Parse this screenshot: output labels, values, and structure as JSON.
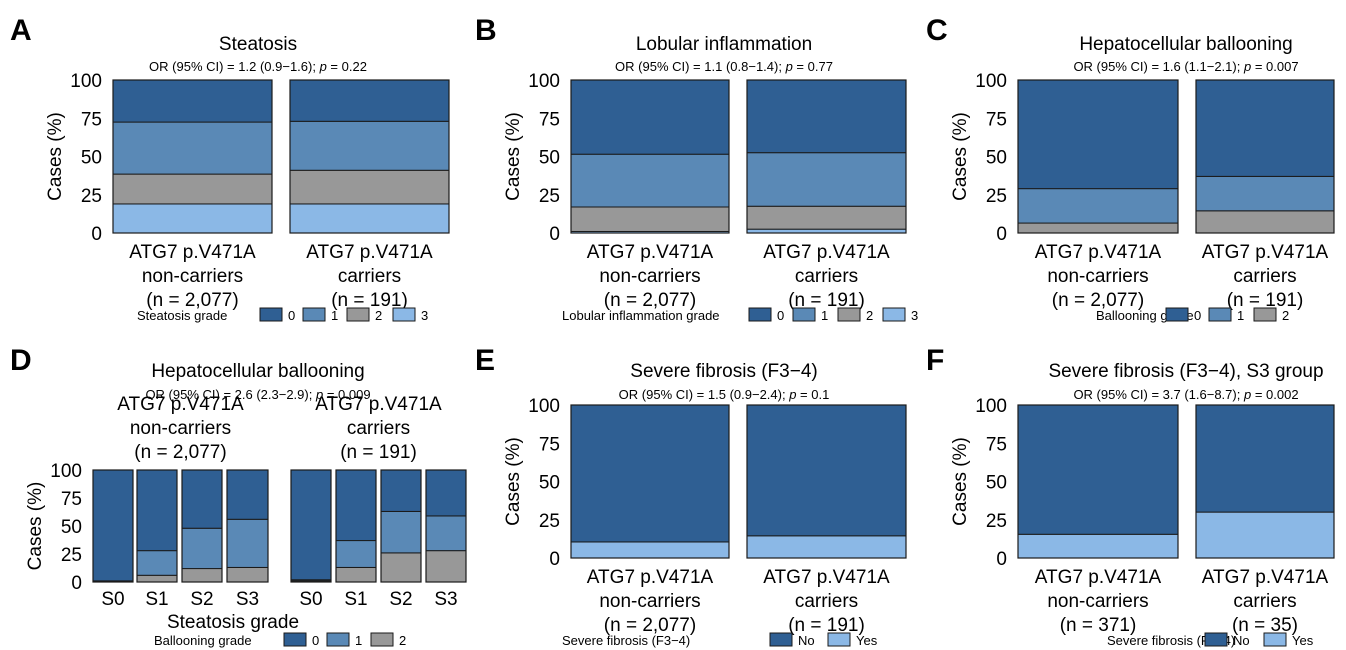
{
  "colors": {
    "0": "#2f5f93",
    "1": "#5a89b6",
    "2": "#989898",
    "3": "#8bb8e6",
    "No": "#2f5f93",
    "Yes": "#8bb8e6"
  },
  "chart_data": [
    {
      "panel": "A",
      "type": "bar",
      "stacked": true,
      "title": "Steatosis",
      "stat": {
        "prefix": "OR (95% CI) = 1.2 (0.9−1.6); ",
        "p_label": "p",
        "p_suffix": " = 0.22"
      },
      "ylabel": "Cases (%)",
      "ylim": [
        0,
        100
      ],
      "yticks": [
        "0",
        "25",
        "50",
        "75",
        "100"
      ],
      "categories": [
        [
          "ATG7 p.V471A",
          "non-carriers",
          "(n = 2,077)"
        ],
        [
          "ATG7 p.V471A",
          "carriers",
          "(n = 191)"
        ]
      ],
      "legend_title": "Steatosis grade",
      "series": [
        {
          "name": "0",
          "values": [
            27.5,
            27
          ]
        },
        {
          "name": "1",
          "values": [
            34,
            32
          ]
        },
        {
          "name": "2",
          "values": [
            19.5,
            22
          ]
        },
        {
          "name": "3",
          "values": [
            19,
            19
          ]
        }
      ]
    },
    {
      "panel": "B",
      "type": "bar",
      "stacked": true,
      "title": "Lobular inflammation",
      "stat": {
        "prefix": "OR (95% CI) = 1.1 (0.8−1.4); ",
        "p_label": "p",
        "p_suffix": " = 0.77"
      },
      "ylabel": "Cases (%)",
      "ylim": [
        0,
        100
      ],
      "yticks": [
        "0",
        "25",
        "50",
        "75",
        "100"
      ],
      "categories": [
        [
          "ATG7 p.V471A",
          "non-carriers",
          "(n = 2,077)"
        ],
        [
          "ATG7 p.V471A",
          "carriers",
          "(n = 191)"
        ]
      ],
      "legend_title": "Lobular inflammation grade",
      "series": [
        {
          "name": "0",
          "values": [
            48.5,
            47.5
          ]
        },
        {
          "name": "1",
          "values": [
            34.5,
            35
          ]
        },
        {
          "name": "2",
          "values": [
            16,
            15
          ]
        },
        {
          "name": "3",
          "values": [
            1,
            2.5
          ]
        }
      ]
    },
    {
      "panel": "C",
      "type": "bar",
      "stacked": true,
      "title": "Hepatocellular ballooning",
      "stat": {
        "prefix": "OR (95% CI) = 1.6 (1.1−2.1); ",
        "p_label": "p",
        "p_suffix": " = 0.007"
      },
      "ylabel": "Cases (%)",
      "ylim": [
        0,
        100
      ],
      "yticks": [
        "0",
        "25",
        "50",
        "75",
        "100"
      ],
      "categories": [
        [
          "ATG7 p.V471A",
          "non-carriers",
          "(n = 2,077)"
        ],
        [
          "ATG7 p.V471A",
          "carriers",
          "(n = 191)"
        ]
      ],
      "legend_title": "Ballooning grade",
      "series": [
        {
          "name": "0",
          "values": [
            71,
            63
          ]
        },
        {
          "name": "1",
          "values": [
            22.5,
            22.5
          ]
        },
        {
          "name": "2",
          "values": [
            6.5,
            14.5
          ]
        }
      ]
    },
    {
      "panel": "D",
      "type": "bar",
      "stacked": true,
      "title": "Hepatocellular ballooning",
      "stat": {
        "prefix": "OR (95% CI) = 2.6 (2.3−2.9); ",
        "p_label": "p",
        "p_suffix": " = 0.009"
      },
      "ylabel": "Cases (%)",
      "ylim": [
        0,
        100
      ],
      "yticks": [
        "0",
        "25",
        "50",
        "75",
        "100"
      ],
      "xlabel": "Steatosis grade",
      "groups": [
        {
          "label": [
            "ATG7 p.V471A",
            "non-carriers",
            "(n = 2,077)"
          ],
          "categories": [
            "S0",
            "S1",
            "S2",
            "S3"
          ]
        },
        {
          "label": [
            "ATG7 p.V471A",
            "carriers",
            "(n = 191)"
          ],
          "categories": [
            "S0",
            "S1",
            "S2",
            "S3"
          ]
        }
      ],
      "legend_title": "Ballooning grade",
      "series": [
        {
          "name": "0",
          "values": [
            99,
            72,
            52,
            44,
            98,
            63,
            37,
            41
          ]
        },
        {
          "name": "1",
          "values": [
            0.5,
            22,
            36,
            43,
            1,
            24,
            37,
            31
          ]
        },
        {
          "name": "2",
          "values": [
            0.5,
            6,
            12,
            13,
            1,
            13,
            26,
            28
          ]
        }
      ]
    },
    {
      "panel": "E",
      "type": "bar",
      "stacked": true,
      "title": "Severe fibrosis (F3−4)",
      "stat": {
        "prefix": "OR (95% CI) = 1.5 (0.9−2.4); ",
        "p_label": "p",
        "p_suffix": " = 0.1"
      },
      "ylabel": "Cases (%)",
      "ylim": [
        0,
        100
      ],
      "yticks": [
        "0",
        "25",
        "50",
        "75",
        "100"
      ],
      "categories": [
        [
          "ATG7 p.V471A",
          "non-carriers",
          "(n = 2,077)"
        ],
        [
          "ATG7 p.V471A",
          "carriers",
          "(n = 191)"
        ]
      ],
      "legend_title": "Severe fibrosis (F3−4)",
      "series": [
        {
          "name": "No",
          "values": [
            89.5,
            85.5
          ]
        },
        {
          "name": "Yes",
          "values": [
            10.5,
            14.5
          ]
        }
      ]
    },
    {
      "panel": "F",
      "type": "bar",
      "stacked": true,
      "title": "Severe fibrosis (F3−4), S3 group",
      "stat": {
        "prefix": "OR (95% CI) = 3.7 (1.6−8.7); ",
        "p_label": "p",
        "p_suffix": " = 0.002"
      },
      "ylabel": "Cases (%)",
      "ylim": [
        0,
        100
      ],
      "yticks": [
        "0",
        "25",
        "50",
        "75",
        "100"
      ],
      "categories": [
        [
          "ATG7 p.V471A",
          "non-carriers",
          "(n = 371)"
        ],
        [
          "ATG7 p.V471A",
          "carriers",
          "(n = 35)"
        ]
      ],
      "legend_title": "Severe fibrosis (F3−4)",
      "series": [
        {
          "name": "No",
          "values": [
            84.5,
            70
          ]
        },
        {
          "name": "Yes",
          "values": [
            15.5,
            30
          ]
        }
      ]
    }
  ]
}
